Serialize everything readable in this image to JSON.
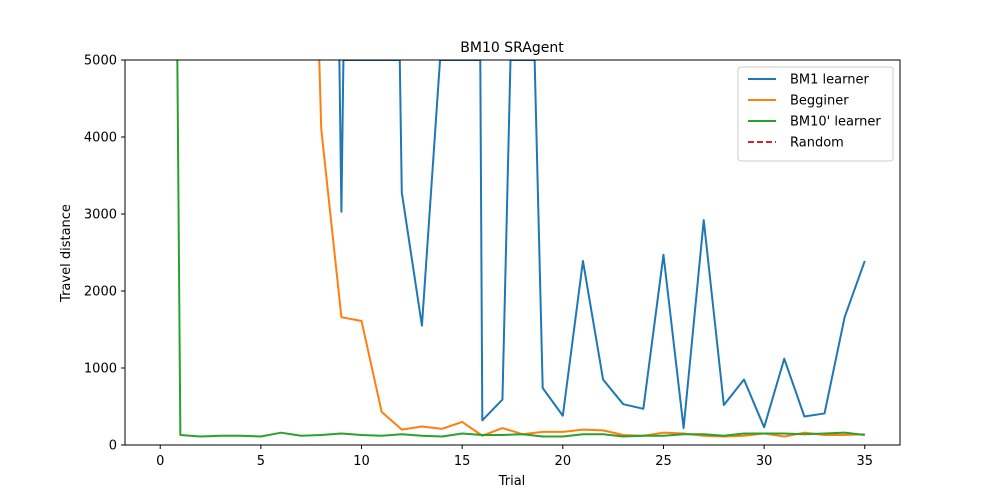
{
  "chart_data": {
    "type": "line",
    "title": "BM10  SRAgent",
    "xlabel": "Trial",
    "ylabel": "Travel distance",
    "xlim": [
      -1.75,
      36.75
    ],
    "ylim": [
      0,
      5000
    ],
    "x_ticks": [
      0,
      5,
      10,
      15,
      20,
      25,
      30,
      35
    ],
    "y_ticks": [
      0,
      1000,
      2000,
      3000,
      4000,
      5000
    ],
    "grid": false,
    "legend_position": "top-right",
    "series": [
      {
        "name": "BM1 learner",
        "color": "#1f77b4",
        "dash": "solid",
        "x": [
          8.9,
          9,
          9.1,
          11.9,
          12,
          13,
          13.9,
          15.9,
          16,
          17,
          17.4,
          18.6,
          19,
          20,
          21,
          22,
          23,
          24,
          25,
          26,
          27,
          28,
          29,
          30,
          31,
          32,
          33,
          34,
          35
        ],
        "y": [
          5000,
          3030,
          5000,
          5000,
          3280,
          1550,
          5000,
          5000,
          320,
          590,
          5000,
          5000,
          740,
          380,
          2390,
          850,
          530,
          470,
          2470,
          220,
          2920,
          520,
          850,
          230,
          1120,
          370,
          410,
          1660,
          2390
        ]
      },
      {
        "name": "Begginer",
        "color": "#ff7f0e",
        "dash": "solid",
        "x": [
          7.9,
          8,
          9,
          10,
          11,
          12,
          13,
          14,
          15,
          16,
          17,
          18,
          19,
          20,
          21,
          22,
          23,
          24,
          25,
          26,
          27,
          28,
          29,
          30,
          31,
          32,
          33,
          34,
          35
        ],
        "y": [
          5000,
          4100,
          1660,
          1610,
          430,
          200,
          240,
          210,
          300,
          120,
          220,
          140,
          170,
          170,
          200,
          190,
          130,
          120,
          160,
          150,
          120,
          110,
          120,
          150,
          110,
          160,
          130,
          130,
          140
        ]
      },
      {
        "name": "BM10' learner",
        "color": "#2ca02c",
        "dash": "solid",
        "x": [
          0.85,
          1,
          2,
          3,
          4,
          5,
          6,
          7,
          8,
          9,
          10,
          11,
          12,
          13,
          14,
          15,
          16,
          17,
          18,
          19,
          20,
          21,
          22,
          23,
          24,
          25,
          26,
          27,
          28,
          29,
          30,
          31,
          32,
          33,
          34,
          35
        ],
        "y": [
          5000,
          130,
          110,
          120,
          120,
          110,
          160,
          120,
          130,
          150,
          130,
          120,
          140,
          120,
          110,
          150,
          130,
          130,
          140,
          110,
          110,
          140,
          140,
          110,
          120,
          120,
          140,
          140,
          120,
          150,
          150,
          150,
          140,
          150,
          160,
          130
        ]
      },
      {
        "name": "Random",
        "color": "#d62728",
        "dash": "dashed",
        "x": [],
        "y": []
      }
    ]
  }
}
